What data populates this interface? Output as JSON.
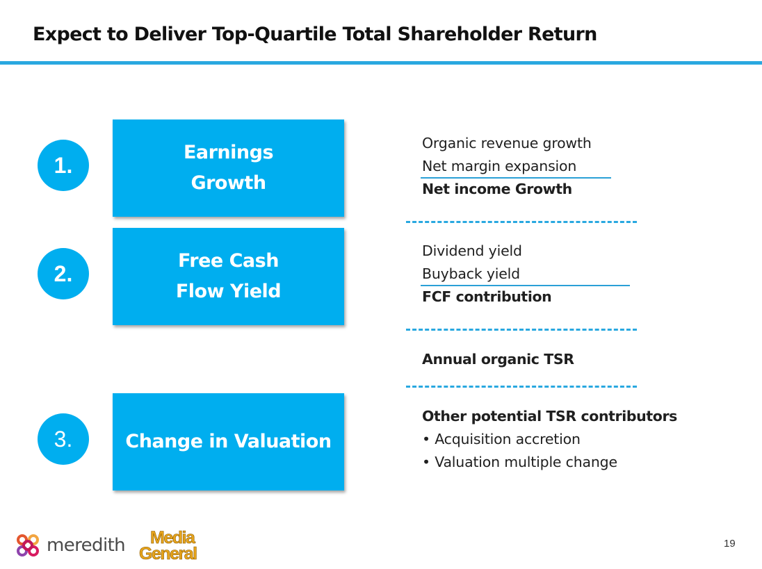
{
  "slide": {
    "title": "Expect to Deliver Top-Quartile Total Shareholder Return",
    "page_number": "19"
  },
  "pillars": [
    {
      "number": "1.",
      "line1": "Earnings",
      "line2": "Growth"
    },
    {
      "number": "2.",
      "line1": "Free Cash",
      "line2": "Flow Yield"
    },
    {
      "number": "3.",
      "line1": "Change in Valuation"
    }
  ],
  "details": {
    "earnings": [
      "Organic revenue growth",
      "Net margin expansion",
      "Net income Growth"
    ],
    "fcf": [
      "Dividend yield",
      "Buyback yield",
      "FCF contribution"
    ],
    "tsr": "Annual organic TSR",
    "other": {
      "heading": "Other potential TSR contributors",
      "bullets": [
        "• Acquisition accretion",
        "• Valuation multiple change"
      ]
    }
  },
  "logos": {
    "meredith": "meredith",
    "media_general_line1": "Media",
    "media_general_line2": "General"
  },
  "colors": {
    "accent": "#00aeef",
    "rule": "#29a8e0",
    "mg_gold": "#e8a51c"
  }
}
